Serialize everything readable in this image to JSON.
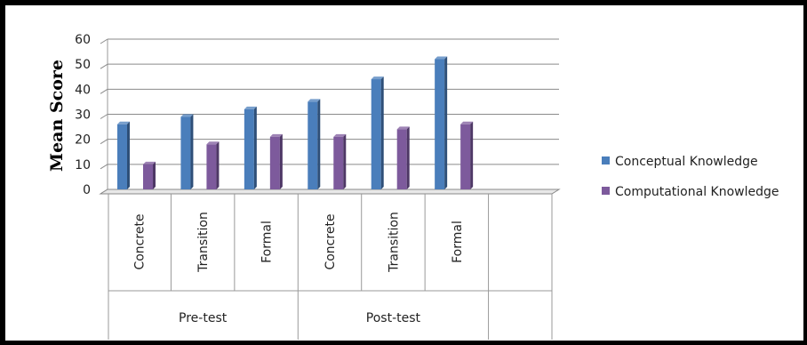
{
  "chart_data": {
    "type": "bar",
    "title": "",
    "xlabel": "",
    "ylabel": "Mean Score",
    "ylim": [
      0,
      60
    ],
    "yticks": [
      "0",
      "10",
      "20",
      "30",
      "40",
      "50",
      "60"
    ],
    "grid": true,
    "legend_position": "right",
    "groups": [
      "Pre-test",
      "Post-test"
    ],
    "categories": [
      "Concrete",
      "Transition",
      "Formal",
      "Concrete",
      "Transition",
      "Formal"
    ],
    "category_group": [
      0,
      0,
      0,
      1,
      1,
      1
    ],
    "series": [
      {
        "name": "Conceptual Knowledge",
        "color": "#4a7ebb",
        "values": [
          26,
          29,
          32,
          35,
          44,
          52
        ]
      },
      {
        "name": "Computational Knowledge",
        "color": "#7d5a9c",
        "values": [
          10,
          18,
          21,
          21,
          24,
          26
        ]
      }
    ]
  }
}
